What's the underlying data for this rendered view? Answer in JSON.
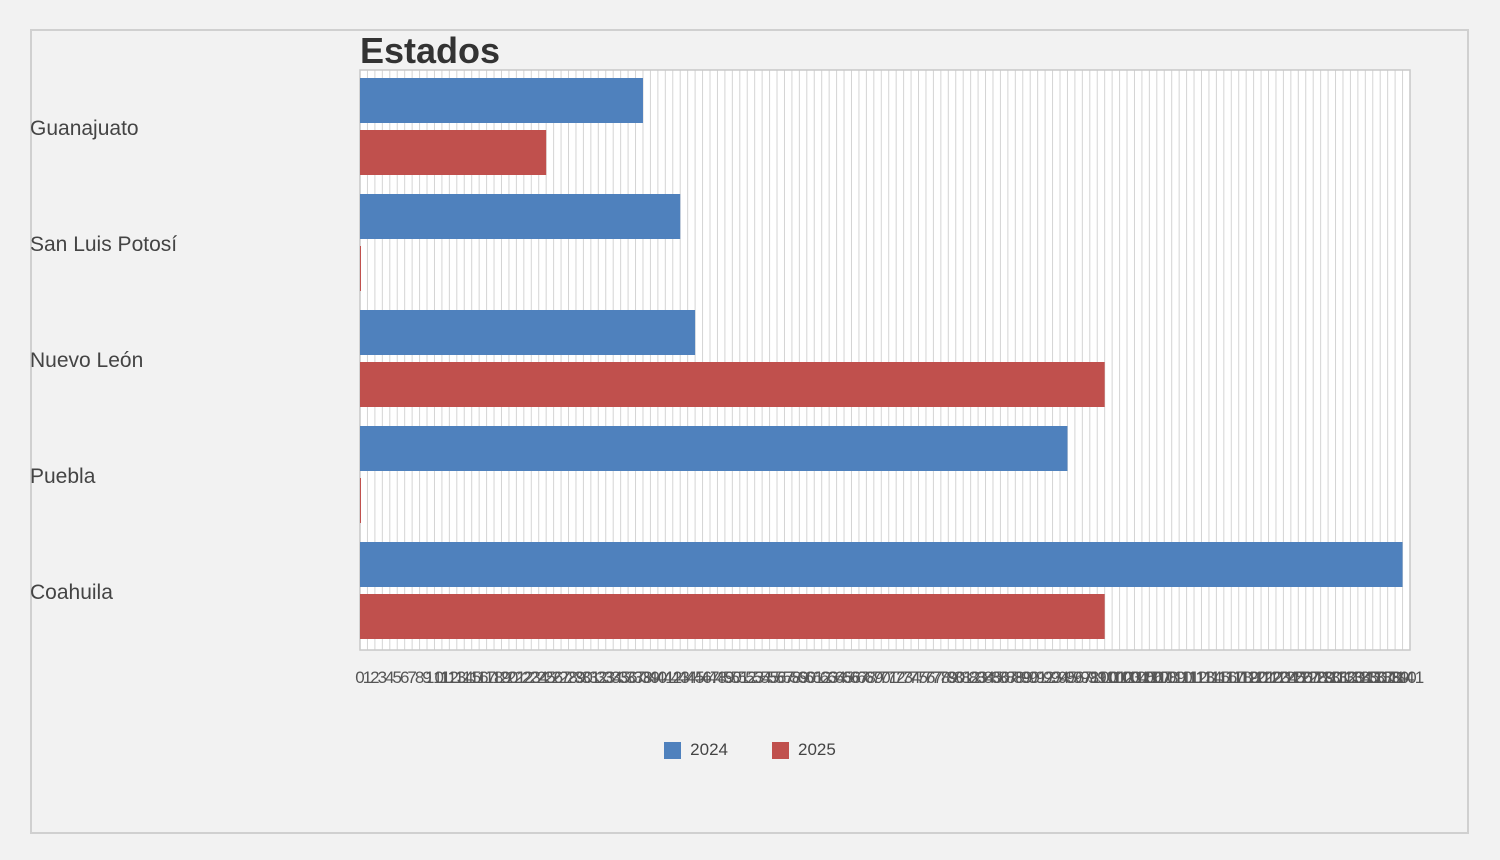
{
  "chart_data": {
    "type": "bar",
    "orientation": "horizontal",
    "title": "Estados",
    "categories": [
      "Guanajuato",
      "San Luis Potosí",
      "Nuevo León",
      "Puebla",
      "Coahuila"
    ],
    "series": [
      {
        "name": "2024",
        "color": "#4f81bd",
        "values": [
          38,
          43,
          45,
          95,
          140
        ]
      },
      {
        "name": "2025",
        "color": "#c0504d",
        "values": [
          25,
          0,
          100,
          0,
          100
        ]
      }
    ],
    "xlim": [
      0,
      141
    ],
    "x_tick_step": 1,
    "grid": "vertical",
    "legend_position": "bottom"
  }
}
